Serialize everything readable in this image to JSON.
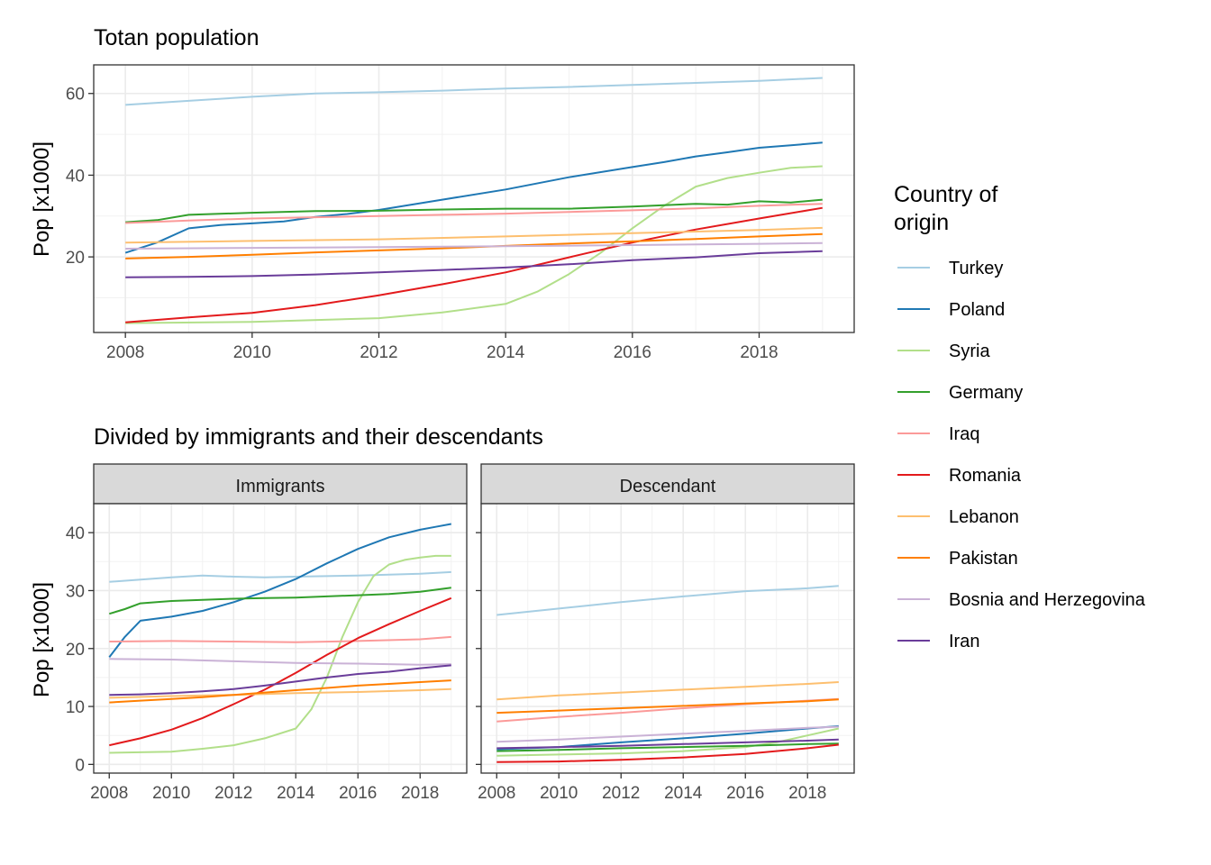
{
  "colors": {
    "Turkey": "#A6CEE3",
    "Poland": "#1F78B4",
    "Syria": "#B2DF8A",
    "Germany": "#33A02C",
    "Iraq": "#FB9A99",
    "Romania": "#E31A1C",
    "Lebanon": "#FDBF6F",
    "Pakistan": "#FF7F00",
    "Bosnia and Herzegovina": "#CAB2D6",
    "Iran": "#6A3D9A"
  },
  "legend": {
    "title": [
      "Country of",
      "origin"
    ],
    "items": [
      "Turkey",
      "Poland",
      "Syria",
      "Germany",
      "Iraq",
      "Romania",
      "Lebanon",
      "Pakistan",
      "Bosnia and Herzegovina",
      "Iran"
    ]
  },
  "chart_data": [
    {
      "type": "line",
      "title": "Totan population",
      "xlabel": "",
      "ylabel": "Pop [x1000]",
      "xlim": [
        2007.5,
        2019.5
      ],
      "ylim": [
        1.5,
        67
      ],
      "xticks": [
        2008,
        2010,
        2012,
        2014,
        2016,
        2018
      ],
      "yticks": [
        20,
        40,
        60
      ],
      "grid": true,
      "series": [
        {
          "name": "Turkey",
          "x": [
            2008,
            2009,
            2010,
            2011,
            2012,
            2013,
            2014,
            2015,
            2016,
            2017,
            2018,
            2019
          ],
          "y": [
            57.2,
            58.2,
            59.2,
            60.0,
            60.3,
            60.7,
            61.2,
            61.6,
            62.1,
            62.6,
            63.1,
            63.8
          ]
        },
        {
          "name": "Poland",
          "x": [
            2008,
            2008.5,
            2009,
            2009.5,
            2010,
            2010.5,
            2011,
            2011.5,
            2012,
            2013,
            2014,
            2015,
            2016,
            2016.5,
            2017,
            2017.5,
            2018,
            2018.5,
            2019
          ],
          "y": [
            21.0,
            23.5,
            27.0,
            27.8,
            28.2,
            28.7,
            29.8,
            30.5,
            31.5,
            34.0,
            36.5,
            39.5,
            42.0,
            43.2,
            44.6,
            45.6,
            46.7,
            47.3,
            48.0
          ]
        },
        {
          "name": "Syria",
          "x": [
            2008,
            2010,
            2012,
            2013,
            2014,
            2014.5,
            2015,
            2015.5,
            2016,
            2016.5,
            2017,
            2017.5,
            2018,
            2018.5,
            2019
          ],
          "y": [
            3.8,
            4.1,
            5.0,
            6.4,
            8.5,
            11.5,
            15.8,
            21.0,
            27.0,
            32.5,
            37.2,
            39.3,
            40.6,
            41.8,
            42.2
          ]
        },
        {
          "name": "Germany",
          "x": [
            2008,
            2008.5,
            2009,
            2010,
            2011,
            2012,
            2013,
            2014,
            2015,
            2016,
            2017,
            2017.5,
            2018,
            2018.5,
            2019
          ],
          "y": [
            28.5,
            29.0,
            30.3,
            30.8,
            31.2,
            31.3,
            31.6,
            31.8,
            31.8,
            32.3,
            33.0,
            32.8,
            33.6,
            33.3,
            34.0
          ]
        },
        {
          "name": "Iraq",
          "x": [
            2008,
            2009,
            2010,
            2011,
            2012,
            2013,
            2014,
            2015,
            2016,
            2017,
            2018,
            2019
          ],
          "y": [
            28.3,
            28.9,
            29.4,
            29.7,
            30.0,
            30.3,
            30.6,
            31.0,
            31.4,
            31.9,
            32.5,
            33.0
          ]
        },
        {
          "name": "Romania",
          "x": [
            2008,
            2009,
            2010,
            2011,
            2012,
            2013,
            2014,
            2015,
            2016,
            2017,
            2018,
            2019
          ],
          "y": [
            4.0,
            5.2,
            6.3,
            8.2,
            10.6,
            13.3,
            16.2,
            19.9,
            23.5,
            26.7,
            29.4,
            32.0
          ]
        },
        {
          "name": "Lebanon",
          "x": [
            2008,
            2010,
            2012,
            2014,
            2016,
            2018,
            2019
          ],
          "y": [
            23.5,
            23.9,
            24.3,
            25.0,
            25.8,
            26.6,
            27.1
          ]
        },
        {
          "name": "Pakistan",
          "x": [
            2008,
            2009,
            2010,
            2011,
            2012,
            2013,
            2014,
            2015,
            2016,
            2017,
            2018,
            2019
          ],
          "y": [
            19.6,
            20.0,
            20.5,
            21.1,
            21.6,
            22.1,
            22.7,
            23.3,
            23.8,
            24.4,
            25.0,
            25.6
          ]
        },
        {
          "name": "Bosnia and Herzegovina",
          "x": [
            2008,
            2010,
            2012,
            2014,
            2016,
            2018,
            2019
          ],
          "y": [
            22.0,
            22.2,
            22.4,
            22.6,
            22.9,
            23.2,
            23.4
          ]
        },
        {
          "name": "Iran",
          "x": [
            2008,
            2009,
            2010,
            2011,
            2012,
            2013,
            2014,
            2015,
            2016,
            2017,
            2018,
            2019
          ],
          "y": [
            15.0,
            15.1,
            15.3,
            15.7,
            16.2,
            16.8,
            17.4,
            18.2,
            19.2,
            19.9,
            20.9,
            21.4
          ]
        }
      ]
    },
    {
      "type": "line",
      "title": "Divided by immigrants and their descendants",
      "facet": "Immigrants",
      "xlabel": "",
      "ylabel": "Pop [x1000]",
      "xlim": [
        2007.5,
        2019.5
      ],
      "ylim": [
        -1.5,
        45
      ],
      "xticks": [
        2008,
        2010,
        2012,
        2014,
        2016,
        2018
      ],
      "yticks": [
        0,
        10,
        20,
        30,
        40
      ],
      "grid": true,
      "series": [
        {
          "name": "Turkey",
          "x": [
            2008,
            2010,
            2011,
            2012,
            2013,
            2014,
            2016,
            2018,
            2019
          ],
          "y": [
            31.5,
            32.3,
            32.6,
            32.4,
            32.3,
            32.4,
            32.6,
            32.9,
            33.2
          ]
        },
        {
          "name": "Poland",
          "x": [
            2008,
            2008.5,
            2009,
            2010,
            2011,
            2012,
            2013,
            2014,
            2015,
            2016,
            2017,
            2018,
            2018.5,
            2019
          ],
          "y": [
            18.5,
            22.0,
            24.8,
            25.5,
            26.5,
            28.0,
            29.8,
            32.0,
            34.7,
            37.2,
            39.2,
            40.5,
            41.0,
            41.5
          ]
        },
        {
          "name": "Syria",
          "x": [
            2008,
            2010,
            2011,
            2012,
            2013,
            2014,
            2014.5,
            2015,
            2015.5,
            2016,
            2016.5,
            2017,
            2017.5,
            2018,
            2018.5,
            2019
          ],
          "y": [
            2.0,
            2.2,
            2.7,
            3.3,
            4.5,
            6.2,
            9.5,
            15.0,
            22.0,
            28.0,
            32.5,
            34.5,
            35.3,
            35.7,
            36.0,
            36.0
          ]
        },
        {
          "name": "Germany",
          "x": [
            2008,
            2008.5,
            2009,
            2010,
            2011,
            2012,
            2013,
            2014,
            2015,
            2016,
            2017,
            2018,
            2019
          ],
          "y": [
            26.0,
            26.8,
            27.8,
            28.2,
            28.4,
            28.6,
            28.7,
            28.8,
            29.0,
            29.2,
            29.4,
            29.8,
            30.5
          ]
        },
        {
          "name": "Iraq",
          "x": [
            2008,
            2010,
            2012,
            2014,
            2016,
            2018,
            2019
          ],
          "y": [
            21.2,
            21.3,
            21.2,
            21.1,
            21.3,
            21.6,
            22.0
          ]
        },
        {
          "name": "Romania",
          "x": [
            2008,
            2009,
            2010,
            2011,
            2012,
            2013,
            2014,
            2015,
            2016,
            2017,
            2018,
            2019
          ],
          "y": [
            3.3,
            4.5,
            6.0,
            8.0,
            10.4,
            12.9,
            15.8,
            18.9,
            21.8,
            24.2,
            26.5,
            28.7
          ]
        },
        {
          "name": "Lebanon",
          "x": [
            2008,
            2010,
            2012,
            2014,
            2016,
            2018,
            2019
          ],
          "y": [
            11.5,
            11.8,
            12.0,
            12.3,
            12.5,
            12.8,
            13.0
          ]
        },
        {
          "name": "Pakistan",
          "x": [
            2008,
            2009,
            2010,
            2011,
            2012,
            2013,
            2014,
            2015,
            2016,
            2017,
            2018,
            2019
          ],
          "y": [
            10.7,
            11.0,
            11.3,
            11.6,
            12.0,
            12.4,
            12.8,
            13.2,
            13.6,
            13.9,
            14.2,
            14.5
          ]
        },
        {
          "name": "Bosnia and Herzegovina",
          "x": [
            2008,
            2010,
            2012,
            2014,
            2016,
            2018,
            2019
          ],
          "y": [
            18.2,
            18.1,
            17.8,
            17.5,
            17.4,
            17.2,
            17.3
          ]
        },
        {
          "name": "Iran",
          "x": [
            2008,
            2009,
            2010,
            2011,
            2012,
            2013,
            2014,
            2015,
            2016,
            2017,
            2018,
            2019
          ],
          "y": [
            12.0,
            12.1,
            12.3,
            12.6,
            13.0,
            13.6,
            14.3,
            15.0,
            15.6,
            16.0,
            16.6,
            17.1
          ]
        }
      ]
    },
    {
      "type": "line",
      "facet": "Descendant",
      "xlabel": "",
      "ylabel": "",
      "xlim": [
        2007.5,
        2019.5
      ],
      "ylim": [
        -1.5,
        45
      ],
      "xticks": [
        2008,
        2010,
        2012,
        2014,
        2016,
        2018
      ],
      "yticks": [
        0,
        10,
        20,
        30,
        40
      ],
      "grid": true,
      "series": [
        {
          "name": "Turkey",
          "x": [
            2008,
            2010,
            2012,
            2014,
            2016,
            2018,
            2019
          ],
          "y": [
            25.8,
            26.9,
            28.0,
            29.0,
            29.9,
            30.4,
            30.8
          ]
        },
        {
          "name": "Poland",
          "x": [
            2008,
            2010,
            2012,
            2014,
            2016,
            2018,
            2019
          ],
          "y": [
            2.6,
            3.0,
            3.8,
            4.5,
            5.3,
            6.2,
            6.6
          ]
        },
        {
          "name": "Syria",
          "x": [
            2008,
            2010,
            2012,
            2014,
            2016,
            2017,
            2018,
            2019
          ],
          "y": [
            1.5,
            1.7,
            1.9,
            2.3,
            3.0,
            3.8,
            5.0,
            6.2
          ]
        },
        {
          "name": "Germany",
          "x": [
            2008,
            2010,
            2012,
            2014,
            2016,
            2018,
            2019
          ],
          "y": [
            2.3,
            2.5,
            2.8,
            3.0,
            3.2,
            3.5,
            3.6
          ]
        },
        {
          "name": "Iraq",
          "x": [
            2008,
            2010,
            2012,
            2014,
            2016,
            2018,
            2019
          ],
          "y": [
            7.4,
            8.2,
            8.9,
            9.7,
            10.4,
            11.0,
            11.3
          ]
        },
        {
          "name": "Romania",
          "x": [
            2008,
            2010,
            2012,
            2014,
            2016,
            2018,
            2019
          ],
          "y": [
            0.4,
            0.5,
            0.8,
            1.2,
            1.8,
            2.8,
            3.4
          ]
        },
        {
          "name": "Lebanon",
          "x": [
            2008,
            2010,
            2012,
            2014,
            2016,
            2018,
            2019
          ],
          "y": [
            11.2,
            11.9,
            12.4,
            12.9,
            13.4,
            13.9,
            14.2
          ]
        },
        {
          "name": "Pakistan",
          "x": [
            2008,
            2010,
            2012,
            2014,
            2016,
            2018,
            2019
          ],
          "y": [
            8.9,
            9.3,
            9.7,
            10.1,
            10.5,
            10.9,
            11.2
          ]
        },
        {
          "name": "Bosnia and Herzegovina",
          "x": [
            2008,
            2010,
            2012,
            2014,
            2016,
            2018,
            2019
          ],
          "y": [
            3.9,
            4.3,
            4.8,
            5.3,
            5.8,
            6.3,
            6.5
          ]
        },
        {
          "name": "Iran",
          "x": [
            2008,
            2010,
            2012,
            2014,
            2016,
            2018,
            2019
          ],
          "y": [
            2.8,
            3.0,
            3.2,
            3.5,
            3.8,
            4.1,
            4.3
          ]
        }
      ]
    }
  ]
}
